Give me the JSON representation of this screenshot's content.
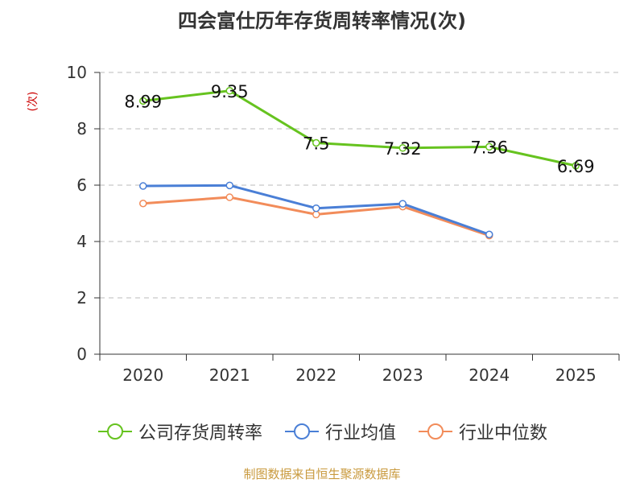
{
  "title": "四会富仕历年存货周转率情况(次)",
  "footer": "制图数据来自恒生聚源数据库",
  "colors": {
    "company": "#66c31f",
    "industry_avg": "#4a7fd6",
    "industry_median": "#f28c5a",
    "grid": "#bbbbbb",
    "axis": "#333333"
  },
  "chart_data": {
    "type": "line",
    "title": "四会富仕历年存货周转率情况(次)",
    "ylabel": "(次)",
    "xlabel": "",
    "categories": [
      "2020",
      "2021",
      "2022",
      "2023",
      "2024",
      "2025"
    ],
    "ylim": [
      0,
      10
    ],
    "yticks": [
      0,
      2,
      4,
      6,
      8,
      10
    ],
    "grid": true,
    "legend_position": "bottom",
    "series": [
      {
        "name": "公司存货周转率",
        "values": [
          8.99,
          9.35,
          7.5,
          7.32,
          7.36,
          6.69
        ],
        "labels": [
          "8.99",
          "9.35",
          "7.5",
          "7.32",
          "7.36",
          "6.69"
        ],
        "show_labels": true
      },
      {
        "name": "行业均值",
        "values": [
          5.97,
          5.99,
          5.18,
          5.34,
          4.25,
          null
        ],
        "show_labels": false
      },
      {
        "name": "行业中位数",
        "values": [
          5.35,
          5.57,
          4.96,
          5.24,
          4.21,
          null
        ],
        "show_labels": false
      }
    ]
  }
}
